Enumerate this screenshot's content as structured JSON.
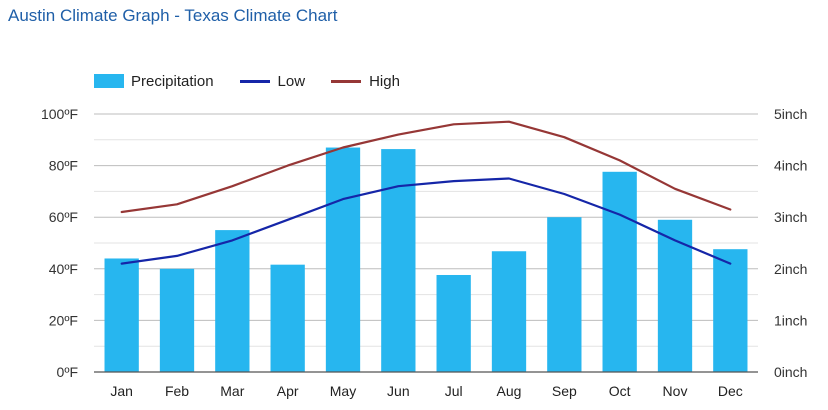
{
  "page": {
    "title": "Austin Climate Graph - Texas Climate Chart"
  },
  "legend": {
    "items": [
      {
        "label": "Precipitation",
        "color": "#27b6ef",
        "kind": "box"
      },
      {
        "label": "Low",
        "color": "#1526a8",
        "kind": "line"
      },
      {
        "label": "High",
        "color": "#963736",
        "kind": "line"
      }
    ]
  },
  "chart_data": {
    "type": "bar",
    "categories": [
      "Jan",
      "Feb",
      "Mar",
      "Apr",
      "May",
      "Jun",
      "Jul",
      "Aug",
      "Sep",
      "Oct",
      "Nov",
      "Dec"
    ],
    "series": [
      {
        "name": "Precipitation",
        "type": "bar",
        "axis": "right",
        "color": "#27b6ef",
        "values": [
          2.2,
          2.0,
          2.75,
          2.08,
          4.35,
          4.32,
          1.88,
          2.34,
          3.0,
          3.88,
          2.95,
          2.38
        ]
      },
      {
        "name": "Low",
        "type": "line",
        "axis": "left",
        "color": "#1526a8",
        "values": [
          42,
          45,
          51,
          59,
          67,
          72,
          74,
          75,
          69,
          61,
          51,
          42
        ]
      },
      {
        "name": "High",
        "type": "line",
        "axis": "left",
        "color": "#963736",
        "values": [
          62,
          65,
          72,
          80,
          87,
          92,
          96,
          97,
          91,
          82,
          71,
          63
        ]
      }
    ],
    "y_left": {
      "ticks": [
        "0ºF",
        "20ºF",
        "40ºF",
        "60ºF",
        "80ºF",
        "100ºF"
      ],
      "range": [
        0,
        100
      ]
    },
    "y_right": {
      "ticks": [
        "0inch",
        "1inch",
        "2inch",
        "3inch",
        "4inch",
        "5inch"
      ],
      "range": [
        0,
        5
      ]
    },
    "grid": true,
    "legend_position": "top-left"
  }
}
